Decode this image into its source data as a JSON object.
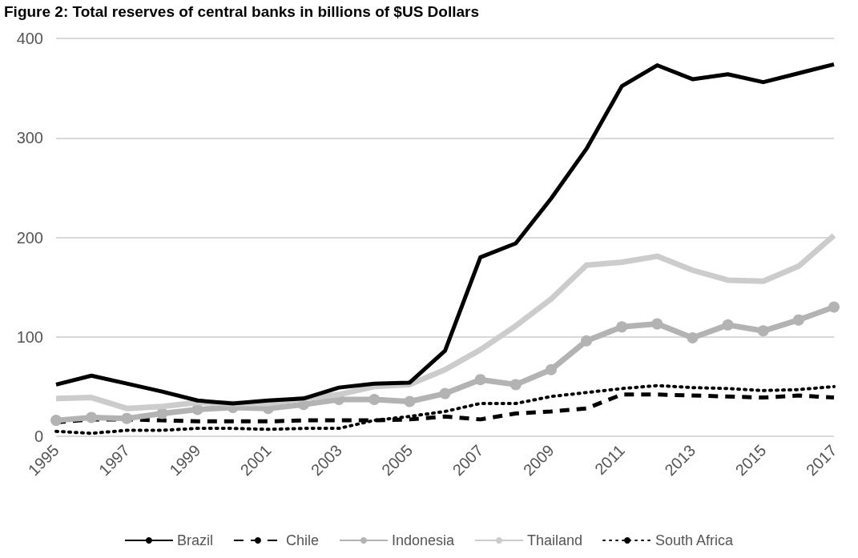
{
  "chart_data": {
    "type": "line",
    "title": "Figure 2: Total reserves of central banks in billions of $US Dollars",
    "categories": [
      "1995",
      null,
      "1997",
      null,
      "1999",
      null,
      "2001",
      null,
      "2003",
      null,
      "2005",
      null,
      "2007",
      null,
      "2009",
      null,
      "2011",
      null,
      "2013",
      null,
      "2015",
      null,
      "2017"
    ],
    "ylim": [
      0,
      400
    ],
    "yticks": [
      0,
      100,
      200,
      300,
      400
    ],
    "grid": "y",
    "legend": "bottom",
    "series": [
      {
        "name": "Brazil",
        "color": "#000000",
        "line_style": "solid",
        "marker": "none",
        "values": [
          52,
          61,
          53,
          45,
          36,
          33,
          36,
          38,
          49,
          53,
          54,
          86,
          180,
          194,
          239,
          289,
          352,
          373,
          359,
          364,
          356,
          365,
          374
        ]
      },
      {
        "name": "Chile",
        "color": "#000000",
        "line_style": "dashed",
        "marker": "none",
        "values": [
          14,
          17,
          17,
          16,
          15,
          15,
          15,
          16,
          16,
          16,
          17,
          20,
          17,
          23,
          25,
          28,
          42,
          42,
          41,
          40,
          39,
          41,
          39
        ]
      },
      {
        "name": "Indonesia",
        "color": "#b3b3b3",
        "line_style": "solid",
        "marker": "circle",
        "values": [
          16,
          19,
          18,
          23,
          27,
          29,
          28,
          32,
          37,
          37,
          35,
          43,
          57,
          52,
          67,
          96,
          110,
          113,
          99,
          112,
          106,
          117,
          130
        ]
      },
      {
        "name": "Thailand",
        "color": "#cccccc",
        "line_style": "solid",
        "marker": "none",
        "values": [
          38,
          39,
          28,
          30,
          34,
          33,
          33,
          38,
          42,
          50,
          52,
          67,
          87,
          111,
          138,
          172,
          175,
          181,
          167,
          157,
          156,
          171,
          202
        ]
      },
      {
        "name": "South Africa",
        "color": "#000000",
        "line_style": "dotted",
        "marker": "none",
        "values": [
          5,
          3,
          6,
          6,
          8,
          8,
          7,
          8,
          8,
          16,
          20,
          25,
          33,
          33,
          40,
          44,
          48,
          51,
          49,
          48,
          46,
          47,
          50
        ]
      }
    ]
  }
}
